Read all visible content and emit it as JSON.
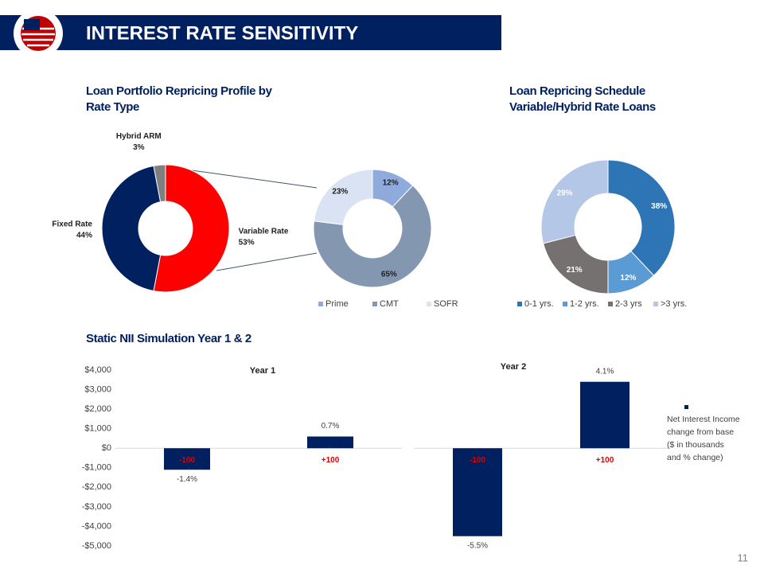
{
  "slide": {
    "title": "INTEREST RATE SENSITIVITY",
    "section_title": "Static NII Simulation Year 1 & 2",
    "page_number": 11
  },
  "chart_data": [
    {
      "type": "donut",
      "title": "Loan Portfolio Repricing Profile by Rate Type",
      "categories": [
        "Variable Rate",
        "Fixed Rate",
        "Hybrid ARM"
      ],
      "values": [
        53,
        44,
        3
      ],
      "value_labels": [
        "53%",
        "44%",
        "3%"
      ],
      "colors": [
        "#ff0000",
        "#002060",
        "#7f7f7f"
      ],
      "labels": "outside",
      "label_color": "#1f1f1f"
    },
    {
      "type": "donut",
      "categories": [
        "Prime",
        "CMT",
        "SOFR"
      ],
      "values": [
        12,
        65,
        23
      ],
      "value_labels": [
        "12%",
        "65%",
        "23%"
      ],
      "colors": [
        "#8faadc",
        "#8497b0",
        "#dae3f3"
      ],
      "labels": "inside",
      "label_color": "#1f1f1f",
      "legend": "bottom"
    },
    {
      "type": "donut",
      "title": "Loan Repricing Schedule Variable/Hybrid Rate Loans",
      "categories": [
        "0-1 yrs.",
        "1-2 yrs.",
        "2-3 yrs",
        ">3 yrs."
      ],
      "values": [
        38,
        12,
        21,
        29
      ],
      "value_labels": [
        "38%",
        "12%",
        "21%",
        "29%"
      ],
      "colors": [
        "#2e75b6",
        "#5b9bd5",
        "#767171",
        "#b4c7e7"
      ],
      "labels": "inside",
      "label_color": "#ffffff",
      "legend": "bottom"
    },
    {
      "type": "bar",
      "title": "Year 1",
      "categories": [
        "-100",
        "+100"
      ],
      "category_label_color": "#e00000",
      "series": [
        {
          "color": "#002060",
          "values": [
            -1100,
            600
          ],
          "change_labels": [
            "-1.4%",
            "0.7%"
          ]
        }
      ],
      "ylim": [
        -5000,
        4000
      ],
      "yticks": [
        {
          "value": -5000,
          "label": "-$5,000"
        },
        {
          "value": -4000,
          "label": "-$4,000"
        },
        {
          "value": -3000,
          "label": "-$3,000"
        },
        {
          "value": -2000,
          "label": "-$2,000"
        },
        {
          "value": -1000,
          "label": "-$1,000"
        },
        {
          "value": 0,
          "label": "$0"
        },
        {
          "value": 1000,
          "label": "$1,000"
        },
        {
          "value": 2000,
          "label": "$2,000"
        },
        {
          "value": 3000,
          "label": "$3,000"
        },
        {
          "value": 4000,
          "label": "$4,000"
        }
      ]
    },
    {
      "type": "bar",
      "title": "Year 2",
      "categories": [
        "-100",
        "+100"
      ],
      "category_label_color": "#e00000",
      "series": [
        {
          "name": "Net Interest Income change from base ($ in thousands and % change)",
          "color": "#002060",
          "values": [
            -4500,
            3400
          ],
          "change_labels": [
            "-5.5%",
            "4.1%"
          ]
        }
      ],
      "ylim": [
        -5000,
        4000
      ],
      "legend": "right"
    }
  ]
}
